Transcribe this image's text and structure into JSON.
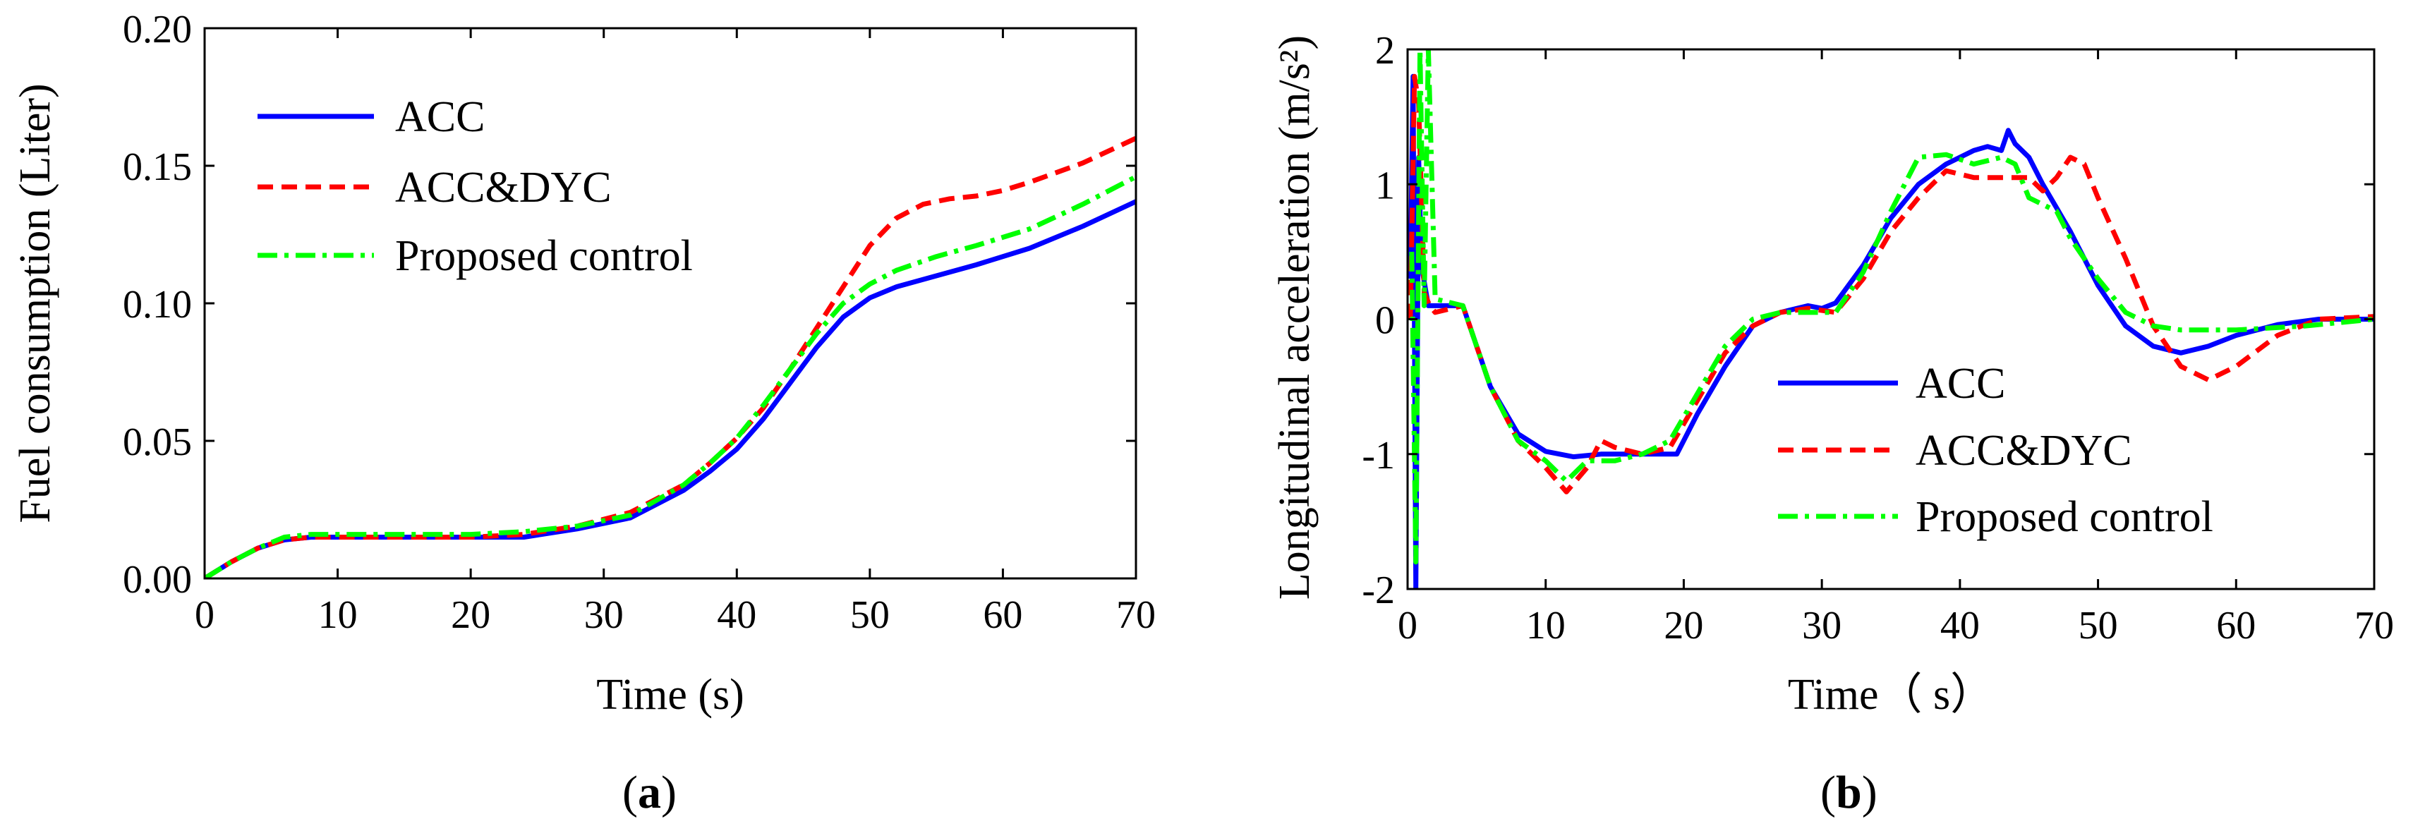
{
  "chart_data": [
    {
      "type": "line",
      "panel_label": {
        "open": "(",
        "letter": "a",
        "close": ")"
      },
      "title": "",
      "xlabel": "Time (s)",
      "ylabel": "Fuel consumption (Liter)",
      "xlim": [
        0,
        70
      ],
      "ylim": [
        0,
        0.2
      ],
      "x_ticks": [
        0,
        10,
        20,
        30,
        40,
        50,
        60,
        70
      ],
      "y_ticks": [
        0.0,
        0.05,
        0.1,
        0.15,
        0.2
      ],
      "x_tick_labels": [
        "0",
        "10",
        "20",
        "30",
        "40",
        "50",
        "60",
        "70"
      ],
      "y_tick_labels": [
        "0.00",
        "0.05",
        "0.10",
        "0.15",
        "0.20"
      ],
      "legend_position": "top-left",
      "grid": false,
      "series": [
        {
          "name": "ACC",
          "color": "#0000ff",
          "style": "solid",
          "x": [
            0,
            2,
            4,
            6,
            8,
            10,
            15,
            20,
            24,
            28,
            32,
            36,
            38,
            40,
            42,
            44,
            46,
            48,
            50,
            52,
            55,
            58,
            62,
            66,
            70
          ],
          "y": [
            0,
            0.006,
            0.011,
            0.014,
            0.015,
            0.015,
            0.015,
            0.015,
            0.015,
            0.018,
            0.022,
            0.032,
            0.039,
            0.047,
            0.058,
            0.071,
            0.084,
            0.095,
            0.102,
            0.106,
            0.11,
            0.114,
            0.12,
            0.128,
            0.137
          ]
        },
        {
          "name": "ACC&DYC",
          "color": "#ff0000",
          "style": "dashed",
          "x": [
            0,
            2,
            4,
            6,
            8,
            10,
            15,
            20,
            24,
            28,
            32,
            36,
            38,
            40,
            42,
            44,
            46,
            48,
            50,
            52,
            54,
            56,
            58,
            60,
            62,
            66,
            70
          ],
          "y": [
            0,
            0.006,
            0.011,
            0.014,
            0.015,
            0.015,
            0.015,
            0.015,
            0.016,
            0.019,
            0.024,
            0.034,
            0.042,
            0.051,
            0.062,
            0.076,
            0.091,
            0.106,
            0.121,
            0.131,
            0.136,
            0.138,
            0.139,
            0.141,
            0.144,
            0.151,
            0.16
          ]
        },
        {
          "name": "Proposed control",
          "color": "#00ff00",
          "style": "dashdot",
          "x": [
            0,
            2,
            4,
            6,
            8,
            10,
            15,
            20,
            24,
            28,
            32,
            36,
            38,
            40,
            42,
            44,
            46,
            48,
            50,
            52,
            55,
            58,
            62,
            66,
            70
          ],
          "y": [
            0,
            0.006,
            0.011,
            0.015,
            0.016,
            0.016,
            0.016,
            0.016,
            0.017,
            0.019,
            0.023,
            0.034,
            0.042,
            0.051,
            0.063,
            0.076,
            0.089,
            0.1,
            0.107,
            0.112,
            0.117,
            0.121,
            0.127,
            0.136,
            0.146
          ]
        }
      ]
    },
    {
      "type": "line",
      "panel_label": {
        "open": "(",
        "letter": "b",
        "close": ")"
      },
      "title": "",
      "xlabel": "Time（ s）",
      "ylabel": "Longitudinal acceleration (m/s²)",
      "xlim": [
        0,
        70
      ],
      "ylim": [
        -2,
        2
      ],
      "x_ticks": [
        0,
        10,
        20,
        30,
        40,
        50,
        60,
        70
      ],
      "y_ticks": [
        -2,
        -1,
        0,
        1,
        2
      ],
      "x_tick_labels": [
        "0",
        "10",
        "20",
        "30",
        "40",
        "50",
        "60",
        "70"
      ],
      "y_tick_labels": [
        "-2",
        "-1",
        "0",
        "1",
        "2"
      ],
      "legend_position": "center-right",
      "grid": false,
      "series": [
        {
          "name": "ACC",
          "color": "#0000ff",
          "style": "solid",
          "x": [
            0.2,
            0.4,
            0.6,
            0.8,
            1.0,
            1.5,
            2,
            4,
            6,
            8,
            10,
            12,
            14,
            16,
            18,
            19.5,
            21,
            23,
            25,
            27,
            29,
            30,
            31,
            33,
            35,
            37,
            39,
            41,
            42,
            43,
            43.5,
            44,
            45,
            46,
            48,
            50,
            52,
            54,
            56,
            58,
            60,
            63,
            66,
            70
          ],
          "y": [
            0.3,
            1.8,
            -2.0,
            1.2,
            0.4,
            0.1,
            0.1,
            0.1,
            -0.5,
            -0.85,
            -0.98,
            -1.02,
            -1.0,
            -1.0,
            -1.0,
            -1.0,
            -0.7,
            -0.35,
            -0.05,
            0.05,
            0.1,
            0.08,
            0.12,
            0.4,
            0.75,
            1.0,
            1.15,
            1.25,
            1.28,
            1.25,
            1.4,
            1.3,
            1.2,
            1.0,
            0.65,
            0.25,
            -0.05,
            -0.2,
            -0.25,
            -0.2,
            -0.12,
            -0.04,
            0.0,
            0.0
          ]
        },
        {
          "name": "ACC&DYC",
          "color": "#ff0000",
          "style": "dashed",
          "x": [
            0.2,
            0.5,
            0.8,
            1.2,
            1.6,
            2,
            4,
            6,
            8,
            10,
            11.5,
            13,
            14,
            15,
            17,
            19,
            21,
            23,
            25,
            27,
            29,
            31,
            33,
            35,
            37,
            39,
            41,
            43,
            45,
            46,
            47,
            48,
            49,
            50,
            52,
            54,
            56,
            58,
            60,
            63,
            66,
            70
          ],
          "y": [
            0.0,
            1.8,
            1.6,
            0.2,
            0.1,
            0.05,
            0.1,
            -0.5,
            -0.9,
            -1.1,
            -1.28,
            -1.1,
            -0.9,
            -0.95,
            -1.0,
            -0.95,
            -0.6,
            -0.25,
            -0.05,
            0.05,
            0.08,
            0.05,
            0.3,
            0.65,
            0.9,
            1.1,
            1.05,
            1.05,
            1.05,
            0.95,
            1.05,
            1.2,
            1.15,
            0.9,
            0.45,
            -0.05,
            -0.35,
            -0.45,
            -0.35,
            -0.12,
            0.0,
            0.02
          ]
        },
        {
          "name": "Proposed control",
          "color": "#00ff00",
          "style": "dashdot",
          "x": [
            0.3,
            0.6,
            0.9,
            1.2,
            1.5,
            2,
            4,
            6,
            8,
            10,
            11.5,
            13,
            15,
            17,
            19,
            21,
            23,
            25,
            27,
            29,
            31,
            33,
            35,
            37,
            39,
            41,
            43,
            44,
            45,
            46,
            47,
            48,
            50,
            52,
            54,
            56,
            60,
            65,
            70
          ],
          "y": [
            0.5,
            -1.8,
            2.0,
            0.1,
            2.0,
            0.15,
            0.1,
            -0.5,
            -0.9,
            -1.05,
            -1.2,
            -1.05,
            -1.05,
            -1.0,
            -0.9,
            -0.55,
            -0.2,
            0.0,
            0.05,
            0.05,
            0.05,
            0.35,
            0.8,
            1.2,
            1.22,
            1.15,
            1.2,
            1.15,
            0.9,
            0.85,
            0.8,
            0.6,
            0.3,
            0.05,
            -0.05,
            -0.08,
            -0.08,
            -0.05,
            0.0
          ]
        }
      ]
    }
  ]
}
